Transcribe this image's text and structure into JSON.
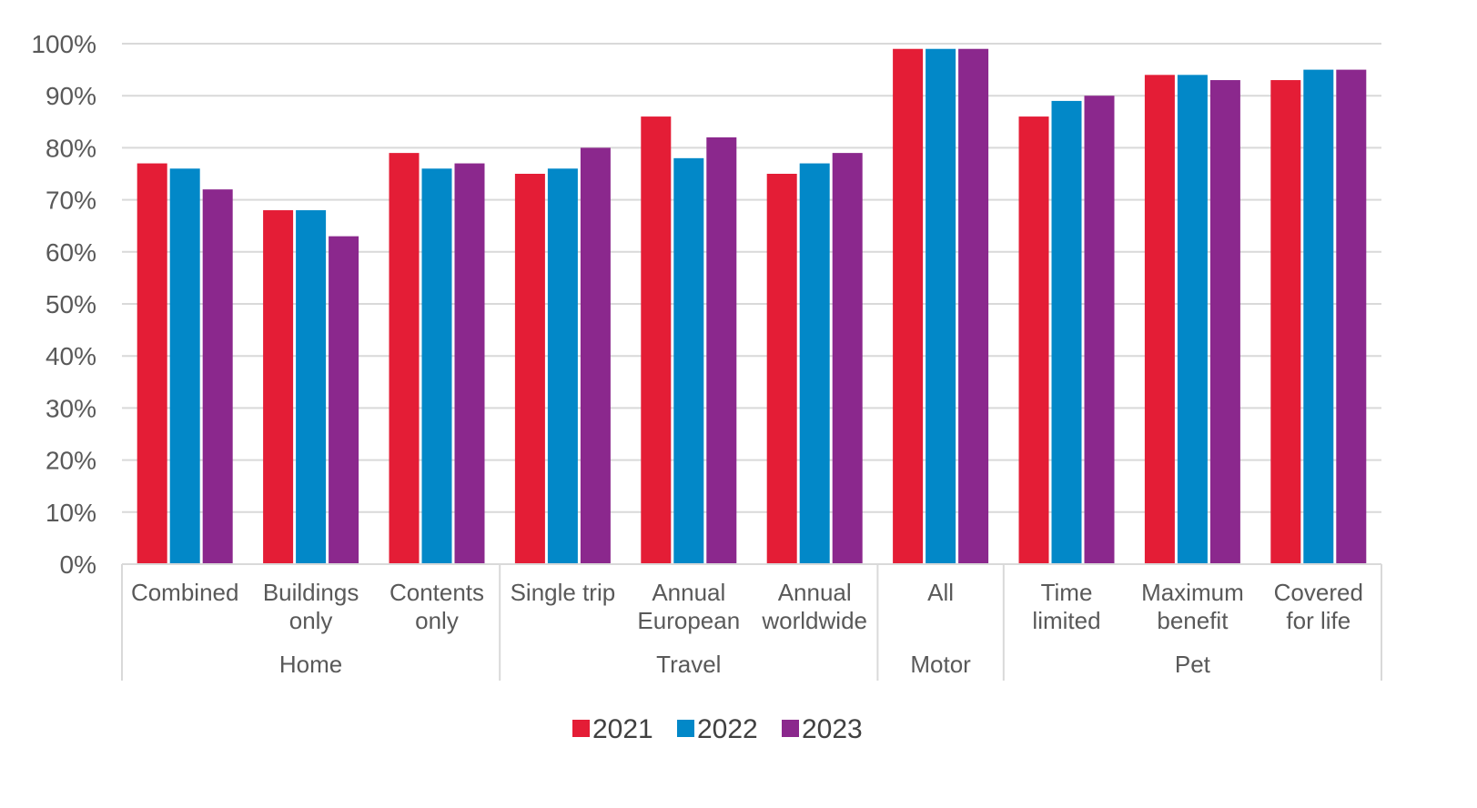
{
  "chart_data": {
    "type": "bar",
    "title": "",
    "xlabel": "",
    "ylabel": "",
    "ylim": [
      0,
      100
    ],
    "yticks": [
      "0%",
      "10%",
      "20%",
      "30%",
      "40%",
      "50%",
      "60%",
      "70%",
      "80%",
      "90%",
      "100%"
    ],
    "grid": true,
    "legend_position": "bottom",
    "categories": [
      [
        "Combined"
      ],
      [
        "Buildings",
        "only"
      ],
      [
        "Contents",
        "only"
      ],
      [
        "Single trip"
      ],
      [
        "Annual",
        "European"
      ],
      [
        "Annual",
        "worldwide"
      ],
      [
        "All"
      ],
      [
        "Time",
        "limited"
      ],
      [
        "Maximum",
        "benefit"
      ],
      [
        "Covered",
        "for life"
      ]
    ],
    "groups": [
      {
        "label": "Home",
        "count": 3
      },
      {
        "label": "Travel",
        "count": 3
      },
      {
        "label": "Motor",
        "count": 1
      },
      {
        "label": "Pet",
        "count": 3
      }
    ],
    "series": [
      {
        "name": "2021",
        "color": "#e41d36",
        "values": [
          77,
          68,
          79,
          75,
          86,
          75,
          99,
          86,
          94,
          93
        ]
      },
      {
        "name": "2022",
        "color": "#0288c8",
        "values": [
          76,
          68,
          76,
          76,
          78,
          77,
          99,
          89,
          94,
          95
        ]
      },
      {
        "name": "2023",
        "color": "#8b288d",
        "values": [
          72,
          63,
          77,
          80,
          82,
          79,
          99,
          90,
          93,
          95
        ]
      }
    ]
  }
}
